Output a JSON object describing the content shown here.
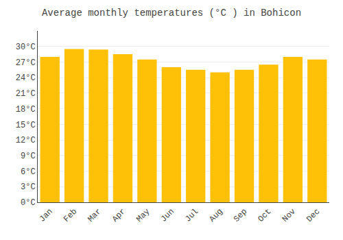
{
  "chart_data": {
    "type": "bar",
    "title": "Average monthly temperatures (°C ) in Bohicon",
    "categories": [
      "Jan",
      "Feb",
      "Mar",
      "Apr",
      "May",
      "Jun",
      "Jul",
      "Aug",
      "Sep",
      "Oct",
      "Nov",
      "Dec"
    ],
    "values": [
      28.0,
      29.5,
      29.4,
      28.5,
      27.5,
      26.0,
      25.5,
      25.0,
      25.5,
      26.5,
      28.0,
      27.5
    ],
    "color": "#FFC107",
    "ylim": [
      0,
      33
    ],
    "yticks": [
      {
        "value": 0,
        "label": "0°C"
      },
      {
        "value": 3,
        "label": "3°C"
      },
      {
        "value": 6,
        "label": "6°C"
      },
      {
        "value": 9,
        "label": "9°C"
      },
      {
        "value": 12,
        "label": "12°C"
      },
      {
        "value": 15,
        "label": "15°C"
      },
      {
        "value": 18,
        "label": "18°C"
      },
      {
        "value": 21,
        "label": "21°C"
      },
      {
        "value": 24,
        "label": "24°C"
      },
      {
        "value": 27,
        "label": "27°C"
      },
      {
        "value": 30,
        "label": "30°C"
      }
    ],
    "grid": true
  }
}
